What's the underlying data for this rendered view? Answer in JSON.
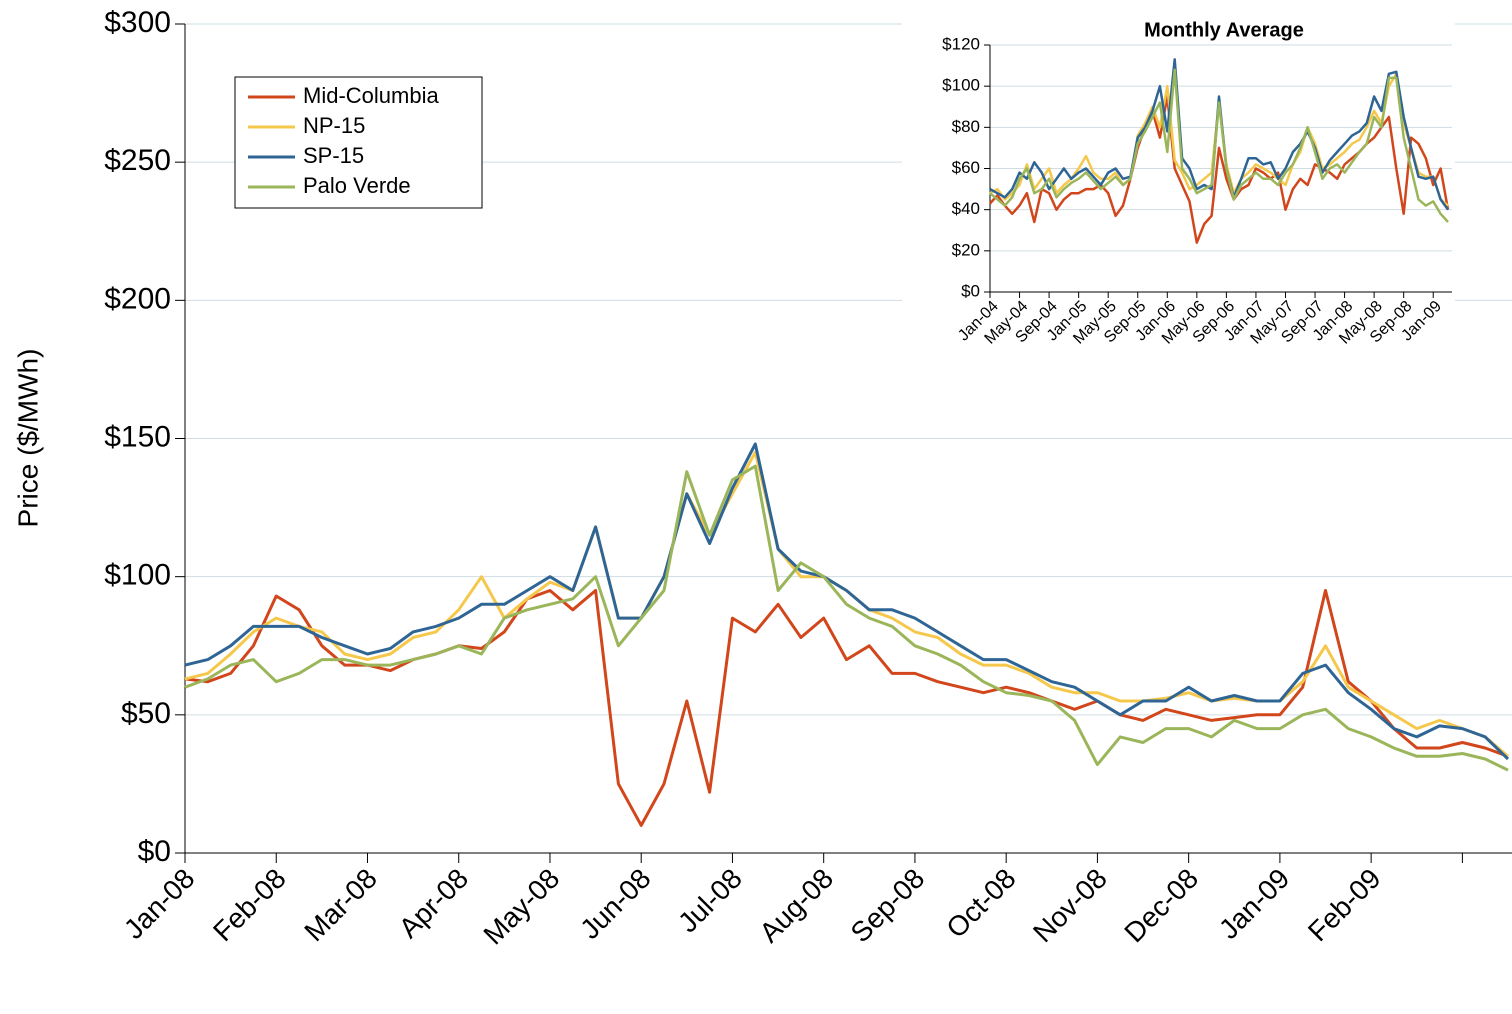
{
  "chart_data": [
    {
      "type": "line",
      "y_label": "Price ($/MWh)",
      "legend": "upper left",
      "grid": true,
      "ylim": [
        0,
        300
      ],
      "yticks": [
        {
          "value": 0,
          "label": "$0"
        },
        {
          "value": 50,
          "label": "$50"
        },
        {
          "value": 100,
          "label": "$100"
        },
        {
          "value": 150,
          "label": "$150"
        },
        {
          "value": 200,
          "label": "$200"
        },
        {
          "value": 250,
          "label": "$250"
        },
        {
          "value": 300,
          "label": "$300"
        }
      ],
      "categories": [
        "Jan-08",
        null,
        null,
        null,
        "Feb-08",
        null,
        null,
        null,
        "Mar-08",
        null,
        null,
        null,
        "Apr-08",
        null,
        null,
        null,
        "May-08",
        null,
        null,
        null,
        "Jun-08",
        null,
        null,
        null,
        "Jul-08",
        null,
        null,
        null,
        "Aug-08",
        null,
        null,
        null,
        "Sep-08",
        null,
        null,
        null,
        "Oct-08",
        null,
        null,
        null,
        "Nov-08",
        null,
        null,
        null,
        "Dec-08",
        null,
        null,
        null,
        "Jan-09",
        null,
        null,
        null,
        "Feb-09",
        null,
        null,
        null,
        null,
        null,
        null
      ],
      "series": [
        {
          "name": "Mid-Columbia",
          "color": "#d2461c",
          "values": [
            63,
            62,
            65,
            75,
            93,
            88,
            75,
            68,
            68,
            66,
            70,
            72,
            75,
            74,
            80,
            92,
            95,
            88,
            95,
            25,
            10,
            25,
            55,
            22,
            85,
            80,
            90,
            78,
            85,
            70,
            75,
            65,
            65,
            62,
            60,
            58,
            60,
            58,
            55,
            52,
            55,
            50,
            48,
            52,
            50,
            48,
            49,
            50,
            50,
            60,
            95,
            62,
            55,
            45,
            38,
            38,
            40,
            38,
            35
          ]
        },
        {
          "name": "NP-15",
          "color": "#f5c84c",
          "values": [
            63,
            65,
            72,
            80,
            85,
            82,
            80,
            72,
            70,
            72,
            78,
            80,
            88,
            100,
            85,
            92,
            98,
            95,
            118,
            85,
            85,
            100,
            130,
            115,
            130,
            145,
            110,
            100,
            100,
            95,
            88,
            85,
            80,
            78,
            72,
            68,
            68,
            65,
            60,
            58,
            58,
            55,
            55,
            56,
            58,
            55,
            56,
            55,
            55,
            62,
            75,
            60,
            55,
            50,
            45,
            48,
            45,
            42,
            35
          ]
        },
        {
          "name": "SP-15",
          "color": "#2e6595",
          "values": [
            68,
            70,
            75,
            82,
            82,
            82,
            78,
            75,
            72,
            74,
            80,
            82,
            85,
            90,
            90,
            95,
            100,
            95,
            118,
            85,
            85,
            100,
            130,
            112,
            132,
            148,
            110,
            102,
            100,
            95,
            88,
            88,
            85,
            80,
            75,
            70,
            70,
            66,
            62,
            60,
            55,
            50,
            55,
            55,
            60,
            55,
            57,
            55,
            55,
            65,
            68,
            58,
            52,
            45,
            42,
            46,
            45,
            42,
            34
          ]
        },
        {
          "name": "Palo Verde",
          "color": "#9bb65a",
          "values": [
            60,
            63,
            68,
            70,
            62,
            65,
            70,
            70,
            68,
            68,
            70,
            72,
            75,
            72,
            85,
            88,
            90,
            92,
            100,
            75,
            85,
            95,
            138,
            115,
            135,
            140,
            95,
            105,
            100,
            90,
            85,
            82,
            75,
            72,
            68,
            62,
            58,
            57,
            55,
            48,
            32,
            42,
            40,
            45,
            45,
            42,
            48,
            45,
            45,
            50,
            52,
            45,
            42,
            38,
            35,
            35,
            36,
            34,
            30
          ]
        }
      ]
    },
    {
      "type": "line",
      "title": "Monthly Average",
      "grid": true,
      "ylim": [
        0,
        120
      ],
      "yticks": [
        {
          "value": 0,
          "label": "$0"
        },
        {
          "value": 20,
          "label": "$20"
        },
        {
          "value": 40,
          "label": "$40"
        },
        {
          "value": 60,
          "label": "$60"
        },
        {
          "value": 80,
          "label": "$80"
        },
        {
          "value": 100,
          "label": "$100"
        },
        {
          "value": 120,
          "label": "$120"
        }
      ],
      "categories": [
        "Jan-04",
        null,
        null,
        null,
        "May-04",
        null,
        null,
        null,
        "Sep-04",
        null,
        null,
        null,
        "Jan-05",
        null,
        null,
        null,
        "May-05",
        null,
        null,
        null,
        "Sep-05",
        null,
        null,
        null,
        "Jan-06",
        null,
        null,
        null,
        "May-06",
        null,
        null,
        null,
        "Sep-06",
        null,
        null,
        null,
        "Jan-07",
        null,
        null,
        null,
        "May-07",
        null,
        null,
        null,
        "Sep-07",
        null,
        null,
        null,
        "Jan-08",
        null,
        null,
        null,
        "May-08",
        null,
        null,
        null,
        "Sep-08",
        null,
        null,
        null,
        "Jan-09",
        null,
        null
      ],
      "series": [
        {
          "color": "#d2461c",
          "values": [
            43,
            47,
            42,
            38,
            42,
            48,
            34,
            50,
            48,
            40,
            45,
            48,
            48,
            50,
            50,
            52,
            48,
            37,
            42,
            55,
            70,
            80,
            88,
            75,
            95,
            60,
            52,
            44,
            24,
            33,
            37,
            70,
            55,
            45,
            50,
            52,
            60,
            58,
            55,
            58,
            40,
            50,
            55,
            52,
            62,
            60,
            58,
            55,
            62,
            65,
            68,
            72,
            75,
            80,
            85,
            60,
            38,
            75,
            72,
            65,
            52,
            60,
            40
          ]
        },
        {
          "color": "#f5c84c",
          "values": [
            48,
            50,
            45,
            48,
            52,
            62,
            50,
            55,
            60,
            48,
            52,
            55,
            60,
            66,
            58,
            55,
            55,
            58,
            52,
            55,
            76,
            82,
            90,
            80,
            100,
            64,
            58,
            50,
            52,
            55,
            58,
            92,
            62,
            48,
            55,
            58,
            62,
            60,
            58,
            55,
            52,
            62,
            68,
            80,
            72,
            60,
            62,
            65,
            68,
            72,
            74,
            80,
            88,
            82,
            100,
            106,
            82,
            70,
            58,
            56,
            56,
            45,
            42
          ]
        },
        {
          "color": "#2e6595",
          "values": [
            50,
            48,
            46,
            50,
            58,
            55,
            63,
            58,
            50,
            55,
            60,
            55,
            58,
            60,
            56,
            52,
            58,
            60,
            55,
            56,
            75,
            80,
            88,
            100,
            78,
            113,
            65,
            60,
            50,
            52,
            50,
            95,
            60,
            46,
            55,
            65,
            65,
            62,
            63,
            55,
            60,
            68,
            72,
            78,
            70,
            58,
            64,
            68,
            72,
            76,
            78,
            82,
            95,
            88,
            106,
            107,
            85,
            70,
            56,
            55,
            56,
            45,
            40
          ]
        },
        {
          "color": "#9bb65a",
          "values": [
            48,
            45,
            42,
            46,
            55,
            60,
            48,
            50,
            55,
            46,
            50,
            53,
            55,
            58,
            54,
            50,
            53,
            56,
            52,
            55,
            72,
            78,
            85,
            92,
            68,
            108,
            60,
            55,
            48,
            50,
            52,
            92,
            60,
            45,
            52,
            55,
            58,
            55,
            55,
            52,
            58,
            62,
            70,
            80,
            68,
            55,
            60,
            62,
            58,
            63,
            68,
            72,
            85,
            80,
            104,
            104,
            75,
            60,
            45,
            42,
            44,
            38,
            34
          ]
        }
      ]
    }
  ]
}
